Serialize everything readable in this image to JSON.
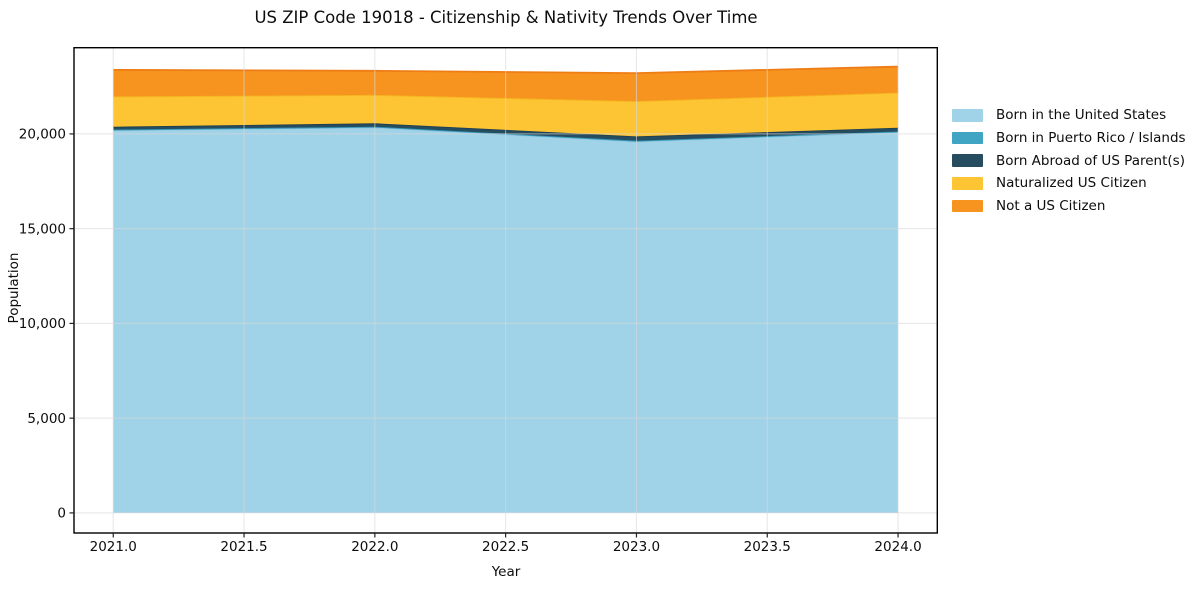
{
  "title": "US ZIP Code 19018 - Citizenship & Nativity Trends Over Time",
  "chart_data": {
    "type": "area",
    "stacked": true,
    "title": "US ZIP Code 19018 - Citizenship & Nativity Trends Over Time",
    "xlabel": "Year",
    "ylabel": "Population",
    "x": [
      2021,
      2022,
      2023,
      2024
    ],
    "series": [
      {
        "name": "Born in the United States",
        "color": "#A0D2E8",
        "line_color": "#8FC6E0",
        "values": [
          20200,
          20350,
          19600,
          20100
        ]
      },
      {
        "name": "Born in Puerto Rico / Islands",
        "color": "#3FA5C2",
        "line_color": "#3498B8",
        "values": [
          30,
          30,
          40,
          30
        ]
      },
      {
        "name": "Born Abroad of US Parent(s)",
        "color": "#264C5F",
        "line_color": "#1E4053",
        "values": [
          150,
          180,
          230,
          200
        ]
      },
      {
        "name": "Naturalized US Citizen",
        "color": "#FDC433",
        "line_color": "#F4B51F",
        "values": [
          1600,
          1500,
          1860,
          1850
        ]
      },
      {
        "name": "Not a US Citizen",
        "color": "#F79420",
        "line_color": "#EE7D15",
        "values": [
          1400,
          1270,
          1480,
          1370
        ]
      }
    ],
    "xlim": [
      2020.85,
      2024.15
    ],
    "ylim": [
      -1060,
      24550
    ],
    "x_ticks": [
      {
        "v": 2021.0,
        "label": "2021.0"
      },
      {
        "v": 2021.5,
        "label": "2021.5"
      },
      {
        "v": 2022.0,
        "label": "2022.0"
      },
      {
        "v": 2022.5,
        "label": "2022.5"
      },
      {
        "v": 2023.0,
        "label": "2023.0"
      },
      {
        "v": 2023.5,
        "label": "2023.5"
      },
      {
        "v": 2024.0,
        "label": "2024.0"
      }
    ],
    "y_ticks": [
      {
        "v": 0,
        "label": "0"
      },
      {
        "v": 5000,
        "label": "5,000"
      },
      {
        "v": 10000,
        "label": "10,000"
      },
      {
        "v": 15000,
        "label": "15,000"
      },
      {
        "v": 20000,
        "label": "20,000"
      }
    ],
    "grid": true,
    "grid_color": "#d9d9d9",
    "legend_position": "right",
    "frame_color": "#000000"
  }
}
